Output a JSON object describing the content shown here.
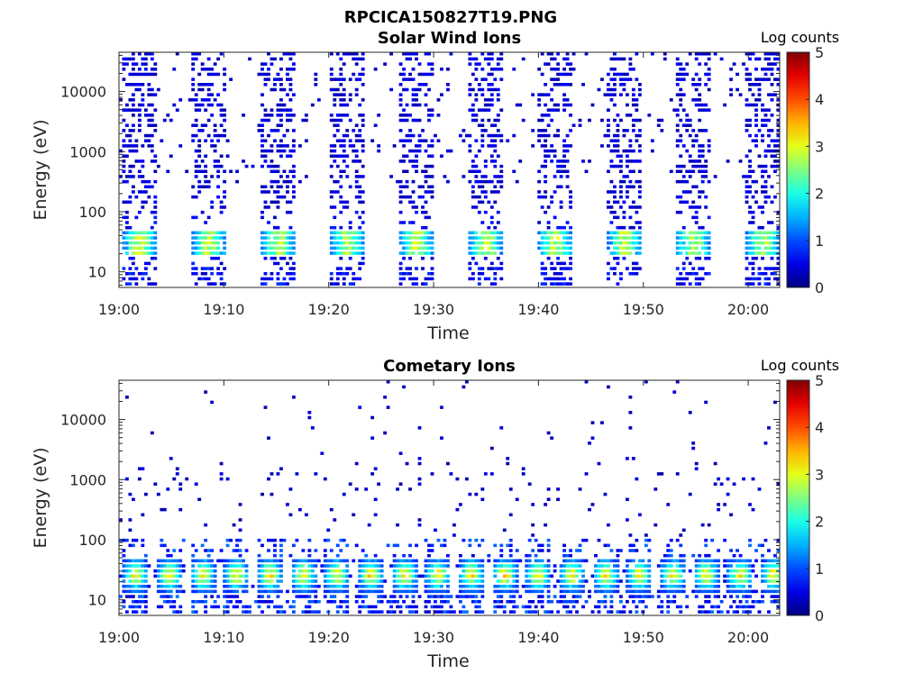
{
  "figure": {
    "title": "RPCICA150827T19.PNG"
  },
  "chart_data": [
    {
      "type": "heatmap",
      "title": "Solar Wind Ions",
      "xlabel": "Time",
      "ylabel": "Energy (eV)",
      "x_ticks": [
        "19:00",
        "19:10",
        "19:20",
        "19:30",
        "19:40",
        "19:50",
        "20:00"
      ],
      "x_range": [
        "19:00",
        "20:03"
      ],
      "y_scale": "log",
      "y_ticks": [
        10,
        100,
        1000,
        10000
      ],
      "y_range": [
        5.5,
        45000
      ],
      "colorbar": {
        "label": "Log counts",
        "range": [
          0,
          5
        ],
        "ticks": [
          0,
          1,
          2,
          3,
          4,
          5
        ]
      },
      "grid": false,
      "pattern": "periodic",
      "period_minutes": 6.6,
      "burst_width_minutes": 3.2,
      "background_density": 0.05,
      "peak_energy_ev": 28,
      "peak_log_counts": 3.2,
      "seed": 11
    },
    {
      "type": "heatmap",
      "title": "Cometary Ions",
      "xlabel": "Time",
      "ylabel": "Energy (eV)",
      "x_ticks": [
        "19:00",
        "19:10",
        "19:20",
        "19:30",
        "19:40",
        "19:50",
        "20:00"
      ],
      "x_range": [
        "19:00",
        "20:03"
      ],
      "y_scale": "log",
      "y_ticks": [
        10,
        100,
        1000,
        10000
      ],
      "y_range": [
        5.5,
        45000
      ],
      "colorbar": {
        "label": "Log counts",
        "range": [
          0,
          5
        ],
        "ticks": [
          0,
          1,
          2,
          3,
          4,
          5
        ]
      },
      "grid": false,
      "pattern": "continuous",
      "period_minutes": 3.2,
      "burst_width_minutes": 2.4,
      "background_density": 0.015,
      "peak_energy_ev": 25,
      "peak_log_counts": 3.6,
      "seed": 29
    }
  ]
}
